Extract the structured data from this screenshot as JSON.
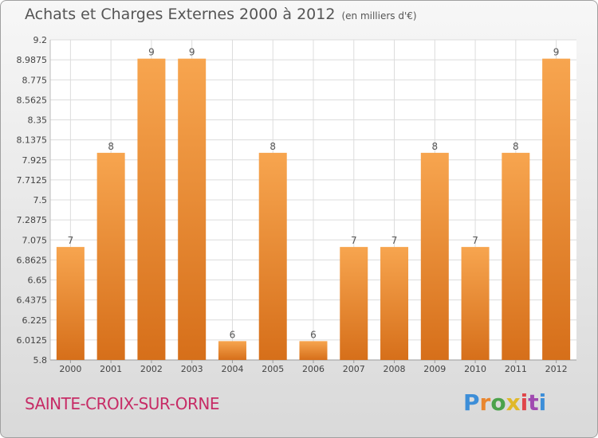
{
  "header": {
    "title": "Achats et Charges Externes 2000 à 2012",
    "unit": "(en milliers d'€)"
  },
  "footer": {
    "commune": "SAINTE-CROIX-SUR-ORNE",
    "brand_letters": [
      "P",
      "r",
      "o",
      "x",
      "i",
      "t",
      "i"
    ]
  },
  "colors": {
    "bar_top": "#f7a54f",
    "bar_bottom": "#d66f1a",
    "grid": "#dcdcdc",
    "commune": "#c72c66"
  },
  "chart_data": {
    "type": "bar",
    "title": "Achats et Charges Externes 2000 à 2012",
    "subtitle": "(en milliers d'€)",
    "xlabel": "",
    "ylabel": "",
    "categories": [
      "2000",
      "2001",
      "2002",
      "2003",
      "2004",
      "2005",
      "2006",
      "2007",
      "2008",
      "2009",
      "2010",
      "2011",
      "2012"
    ],
    "values": [
      7,
      8,
      9,
      9,
      6,
      8,
      6,
      7,
      7,
      8,
      7,
      8,
      9
    ],
    "data_labels": [
      "7",
      "8",
      "9",
      "9",
      "6",
      "8",
      "6",
      "7",
      "7",
      "8",
      "7",
      "8",
      "9"
    ],
    "ylim": [
      5.8,
      9.2
    ],
    "yticks": [
      5.8,
      6.0125,
      6.225,
      6.4375,
      6.65,
      6.8625,
      7.075,
      7.2875,
      7.5,
      7.7125,
      7.925,
      8.1375,
      8.35,
      8.5625,
      8.775,
      8.9875,
      9.2
    ],
    "ytick_labels": [
      "5.8",
      "6.0125",
      "6.225",
      "6.4375",
      "6.65",
      "6.8625",
      "7.075",
      "7.2875",
      "7.5",
      "7.7125",
      "7.925",
      "8.1375",
      "8.35",
      "8.5625",
      "8.775",
      "8.9875",
      "9.2"
    ],
    "grid": true,
    "legend": "none"
  }
}
